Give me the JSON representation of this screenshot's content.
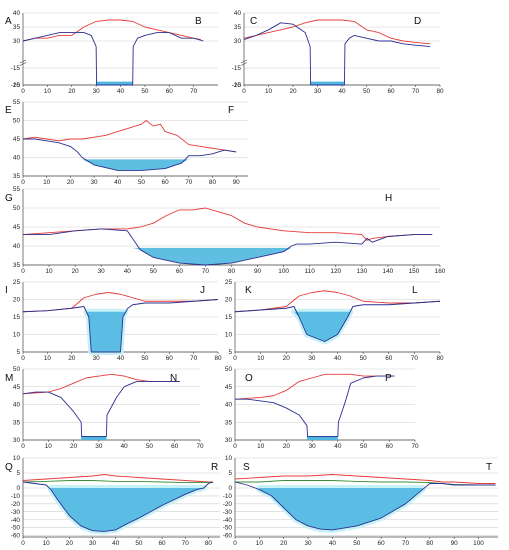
{
  "colors": {
    "red_line": "#e63b3b",
    "blue_line": "#2b2f8f",
    "water_fill": "#4fb7e0",
    "halo_fill": "#c6f2f7",
    "green_line": "#3a8f3a",
    "grid": "#cfcfcf",
    "axis": "#444444"
  },
  "chart_data": [
    {
      "type": "line",
      "id": "AB",
      "labels": [
        "A",
        "B"
      ],
      "xticks": [
        0,
        10,
        20,
        30,
        40,
        50,
        60,
        70
      ],
      "yticks": [
        "40",
        "35",
        "30",
        "15",
        "-15",
        "-20"
      ],
      "axis_break": true,
      "series": [
        {
          "color": "red",
          "x": [
            0,
            5,
            10,
            15,
            20,
            25,
            30,
            35,
            40,
            45,
            50,
            55,
            60,
            65,
            70,
            73
          ],
          "y": [
            30,
            31,
            31,
            32,
            32,
            35,
            37,
            37.5,
            37.5,
            37,
            35,
            34,
            33,
            32,
            31,
            30.5
          ]
        },
        {
          "color": "blue",
          "x": [
            0,
            5,
            10,
            15,
            20,
            25,
            28,
            30,
            30.2,
            45,
            45.2,
            47,
            50,
            55,
            60,
            65,
            70,
            74
          ],
          "y": [
            30,
            31,
            32,
            33,
            33,
            33,
            32,
            28,
            -20,
            -20,
            28,
            31,
            32,
            33,
            33,
            31,
            31,
            30
          ]
        }
      ],
      "water": {
        "type": "rect",
        "x": [
          30,
          45
        ],
        "y": [
          -19,
          -20
        ]
      }
    },
    {
      "type": "line",
      "id": "CD",
      "labels": [
        "C",
        "D"
      ],
      "xticks": [
        0,
        10,
        20,
        30,
        40,
        50,
        60,
        70,
        80
      ],
      "yticks": [
        "40",
        "35",
        "30",
        "15",
        "-15",
        "-20"
      ],
      "axis_break": true,
      "series": [
        {
          "color": "red",
          "x": [
            0,
            5,
            10,
            15,
            20,
            25,
            30,
            35,
            40,
            45,
            50,
            55,
            60,
            65,
            70,
            76
          ],
          "y": [
            31,
            32,
            33,
            34,
            35,
            36.5,
            37.5,
            37.5,
            37.5,
            37,
            34,
            33,
            31,
            30,
            29.5,
            29
          ]
        },
        {
          "color": "blue",
          "x": [
            0,
            5,
            10,
            15,
            20,
            25,
            27,
            27.2,
            41,
            41.2,
            43,
            45,
            50,
            55,
            60,
            65,
            70,
            76
          ],
          "y": [
            30.5,
            32,
            34,
            36.5,
            36,
            33,
            28,
            -20,
            -20,
            29,
            31,
            32,
            31,
            30,
            30,
            29,
            28.5,
            28
          ]
        }
      ],
      "water": {
        "type": "rect",
        "x": [
          27,
          41
        ],
        "y": [
          -19,
          -20
        ]
      }
    },
    {
      "type": "line",
      "id": "EF",
      "labels": [
        "E",
        "F"
      ],
      "xticks": [
        0,
        10,
        20,
        30,
        40,
        50,
        60,
        70,
        80,
        90
      ],
      "yticks": [
        "55",
        "50",
        "45",
        "40",
        "35"
      ],
      "axis_break": false,
      "series": [
        {
          "color": "red",
          "x": [
            0,
            5,
            10,
            15,
            20,
            25,
            30,
            35,
            40,
            45,
            50,
            52,
            55,
            58,
            60,
            65,
            70,
            75,
            80,
            85,
            90
          ],
          "y": [
            45,
            45.5,
            45,
            44.5,
            45,
            45,
            45.5,
            46,
            47,
            48,
            49,
            50,
            48.5,
            49,
            47,
            46,
            43.5,
            43,
            42.5,
            42,
            41.5
          ]
        },
        {
          "color": "blue",
          "x": [
            0,
            5,
            10,
            15,
            20,
            23,
            25,
            30,
            40,
            50,
            60,
            67,
            70,
            75,
            80,
            85,
            90
          ],
          "y": [
            45,
            45,
            44.5,
            44,
            43,
            41.5,
            40,
            38,
            36.5,
            36.5,
            37,
            38.5,
            40.5,
            40.5,
            41,
            42,
            41.5
          ]
        }
      ],
      "water": {
        "type": "fill",
        "x": [
          23,
          70
        ],
        "level": 39.5
      }
    },
    {
      "type": "line",
      "id": "GH",
      "labels": [
        "G",
        "H"
      ],
      "xticks": [
        0,
        10,
        20,
        30,
        40,
        50,
        60,
        70,
        80,
        90,
        100,
        110,
        120,
        130,
        140,
        150,
        160
      ],
      "yticks": [
        "55",
        "50",
        "45",
        "40",
        "35"
      ],
      "axis_break": false,
      "series": [
        {
          "color": "red",
          "x": [
            0,
            10,
            20,
            30,
            40,
            45,
            50,
            55,
            60,
            65,
            70,
            75,
            80,
            85,
            90,
            100,
            110,
            120,
            130,
            132,
            134,
            140,
            150,
            157
          ],
          "y": [
            43,
            43.5,
            44,
            44.5,
            44.5,
            45,
            46,
            48,
            49.5,
            49.5,
            50,
            49,
            48,
            46,
            45,
            44,
            43.5,
            43.5,
            43,
            41.5,
            42,
            42.5,
            43,
            43
          ]
        },
        {
          "color": "blue",
          "x": [
            0,
            10,
            20,
            30,
            40,
            42,
            45,
            50,
            60,
            70,
            80,
            90,
            100,
            103,
            105,
            110,
            120,
            130,
            132,
            134,
            140,
            150,
            157
          ],
          "y": [
            43,
            43,
            44,
            44.5,
            44,
            42,
            39,
            37,
            35.5,
            35,
            35.5,
            37,
            38.5,
            40,
            40.5,
            40.5,
            41,
            40.5,
            42,
            41,
            42.5,
            43,
            43
          ]
        }
      ],
      "water": {
        "type": "fill",
        "x": [
          42,
          103
        ],
        "level": 39.5
      }
    },
    {
      "type": "line",
      "id": "IJ",
      "labels": [
        "I",
        "J"
      ],
      "xticks": [
        0,
        10,
        20,
        30,
        40,
        50,
        60,
        70,
        80
      ],
      "yticks": [
        "25",
        "20",
        "15",
        "10",
        "5"
      ],
      "axis_break": false,
      "series": [
        {
          "color": "red",
          "x": [
            0,
            10,
            20,
            25,
            30,
            35,
            40,
            45,
            50,
            60,
            70,
            80
          ],
          "y": [
            16.5,
            16.8,
            17.5,
            20.5,
            21.5,
            22,
            21.5,
            20.5,
            19.5,
            19.5,
            19.5,
            20
          ]
        },
        {
          "color": "blue",
          "x": [
            0,
            10,
            20,
            25,
            27,
            28,
            40,
            41,
            43,
            45,
            50,
            60,
            70,
            80
          ],
          "y": [
            16.5,
            16.8,
            17.5,
            18,
            15,
            5,
            5,
            15,
            17.5,
            18.5,
            19,
            19,
            19.5,
            20
          ]
        }
      ],
      "water": {
        "type": "fill",
        "x": [
          26,
          42
        ],
        "level": 16.5,
        "halo": true
      }
    },
    {
      "type": "line",
      "id": "KL",
      "labels": [
        "K",
        "L"
      ],
      "xticks": [
        0,
        10,
        20,
        30,
        40,
        50,
        60,
        70,
        80
      ],
      "yticks": [
        "25",
        "20",
        "15",
        "10",
        "5"
      ],
      "axis_break": false,
      "series": [
        {
          "color": "red",
          "x": [
            0,
            10,
            20,
            25,
            30,
            35,
            40,
            45,
            50,
            60,
            70,
            80
          ],
          "y": [
            16.5,
            17,
            18,
            21,
            22,
            22.5,
            22,
            21,
            19.5,
            19,
            19,
            19.5
          ]
        },
        {
          "color": "blue",
          "x": [
            0,
            10,
            20,
            23,
            25,
            28,
            35,
            40,
            44,
            46,
            50,
            60,
            70,
            80
          ],
          "y": [
            16.5,
            17,
            17.5,
            18,
            15,
            10,
            8,
            10,
            15,
            18,
            18.5,
            18.5,
            19,
            19.5
          ]
        }
      ],
      "water": {
        "type": "fill",
        "x": [
          23,
          45
        ],
        "level": 16.5,
        "halo": true
      }
    },
    {
      "type": "line",
      "id": "MN",
      "labels": [
        "M",
        "N"
      ],
      "xticks": [
        0,
        10,
        20,
        30,
        40,
        50,
        60,
        70
      ],
      "yticks": [
        "50",
        "45",
        "40",
        "35",
        "30"
      ],
      "axis_break": false,
      "series": [
        {
          "color": "red",
          "x": [
            0,
            10,
            15,
            20,
            25,
            30,
            35,
            40,
            45,
            50,
            55,
            62
          ],
          "y": [
            43,
            43.5,
            44.5,
            46,
            47.5,
            48,
            48.5,
            48,
            47,
            46.5,
            46.5,
            46.5
          ]
        },
        {
          "color": "blue",
          "x": [
            0,
            5,
            10,
            15,
            20,
            23,
            23.2,
            33,
            33.2,
            37,
            40,
            45,
            50,
            55,
            62
          ],
          "y": [
            43,
            43.5,
            43.5,
            42,
            38,
            35,
            31,
            31,
            37,
            42,
            45,
            46.5,
            46.5,
            46.5,
            46.5
          ]
        }
      ],
      "water": {
        "type": "rect",
        "x": [
          23,
          33
        ],
        "y": [
          31,
          30
        ]
      }
    },
    {
      "type": "line",
      "id": "OP",
      "labels": [
        "O",
        "P"
      ],
      "xticks": [
        0,
        10,
        20,
        30,
        40,
        50,
        60,
        70
      ],
      "yticks": [
        "50",
        "45",
        "40",
        "35",
        "30"
      ],
      "axis_break": false,
      "series": [
        {
          "color": "red",
          "x": [
            0,
            10,
            15,
            20,
            25,
            30,
            35,
            40,
            45,
            50,
            55,
            62
          ],
          "y": [
            41.5,
            42,
            42.5,
            44,
            46.5,
            47.5,
            48.5,
            48.5,
            48.5,
            48,
            48,
            48
          ]
        },
        {
          "color": "blue",
          "x": [
            0,
            5,
            10,
            15,
            20,
            25,
            28,
            28.2,
            40,
            40.2,
            43,
            45,
            50,
            55,
            62
          ],
          "y": [
            41.5,
            41.5,
            41,
            40.5,
            39,
            37,
            34,
            31,
            31,
            35,
            41,
            46,
            47.5,
            48,
            48
          ]
        }
      ],
      "water": {
        "type": "rect",
        "x": [
          28,
          40
        ],
        "y": [
          31,
          30
        ]
      }
    },
    {
      "type": "line",
      "id": "QR",
      "labels": [
        "Q",
        "R"
      ],
      "xticks": [
        0,
        10,
        20,
        30,
        40,
        50,
        60,
        70,
        80
      ],
      "yticks": [
        "10",
        "5",
        "0",
        "-10",
        "-20",
        "-30",
        "-40",
        "-50",
        "-60"
      ],
      "axis_break": false,
      "series": [
        {
          "color": "red",
          "x": [
            0,
            10,
            20,
            30,
            35,
            40,
            50,
            60,
            70,
            80,
            82
          ],
          "y": [
            2.5,
            3,
            3.5,
            4,
            4.5,
            4,
            3.5,
            3,
            2.5,
            2,
            2
          ]
        },
        {
          "color": "green",
          "x": [
            0,
            10,
            20,
            30,
            40,
            50,
            60,
            70,
            80,
            82
          ],
          "y": [
            2,
            2.2,
            2.5,
            2.5,
            2.2,
            2.2,
            2,
            1.8,
            1.8,
            1.8
          ]
        },
        {
          "color": "blue",
          "x": [
            0,
            5,
            10,
            12,
            15,
            20,
            25,
            30,
            35,
            40,
            45,
            50,
            55,
            60,
            65,
            70,
            75,
            78,
            80,
            82
          ],
          "y": [
            2,
            1.5,
            1,
            -2,
            -15,
            -35,
            -48,
            -54,
            -55,
            -53,
            -45,
            -38,
            -30,
            -22,
            -15,
            -8,
            -2,
            0,
            1.5,
            2
          ]
        }
      ],
      "water": {
        "type": "fill",
        "x": [
          12,
          78
        ],
        "level": 0,
        "halo": true
      }
    },
    {
      "type": "line",
      "id": "ST",
      "labels": [
        "S",
        "T"
      ],
      "xticks": [
        0,
        10,
        20,
        30,
        40,
        50,
        60,
        70,
        80,
        90,
        100
      ],
      "yticks": [
        "10",
        "5",
        "0",
        "-10",
        "-20",
        "-30",
        "-40",
        "-50",
        "-60"
      ],
      "axis_break": false,
      "series": [
        {
          "color": "red",
          "x": [
            0,
            10,
            20,
            30,
            40,
            50,
            60,
            70,
            80,
            85,
            90,
            100,
            107
          ],
          "y": [
            3,
            3.5,
            4,
            4,
            4.5,
            4,
            3.5,
            3,
            2.5,
            2,
            2,
            1.5,
            1.5
          ]
        },
        {
          "color": "green",
          "x": [
            0,
            10,
            20,
            30,
            40,
            50,
            60,
            70,
            80,
            90,
            100,
            107
          ],
          "y": [
            2,
            2,
            2.5,
            2.5,
            2.5,
            2.2,
            2,
            2,
            1.8,
            1.2,
            1,
            1
          ]
        },
        {
          "color": "blue",
          "x": [
            0,
            5,
            10,
            15,
            20,
            25,
            30,
            35,
            40,
            50,
            60,
            70,
            77,
            80,
            85,
            90,
            100,
            107
          ],
          "y": [
            2,
            1,
            -2,
            -10,
            -25,
            -40,
            -48,
            -52,
            -53,
            -48,
            -38,
            -20,
            -2,
            1.5,
            1.5,
            1,
            1,
            1
          ]
        }
      ],
      "water": {
        "type": "fill",
        "x": [
          10,
          77
        ],
        "level": 0,
        "halo": true
      }
    }
  ]
}
